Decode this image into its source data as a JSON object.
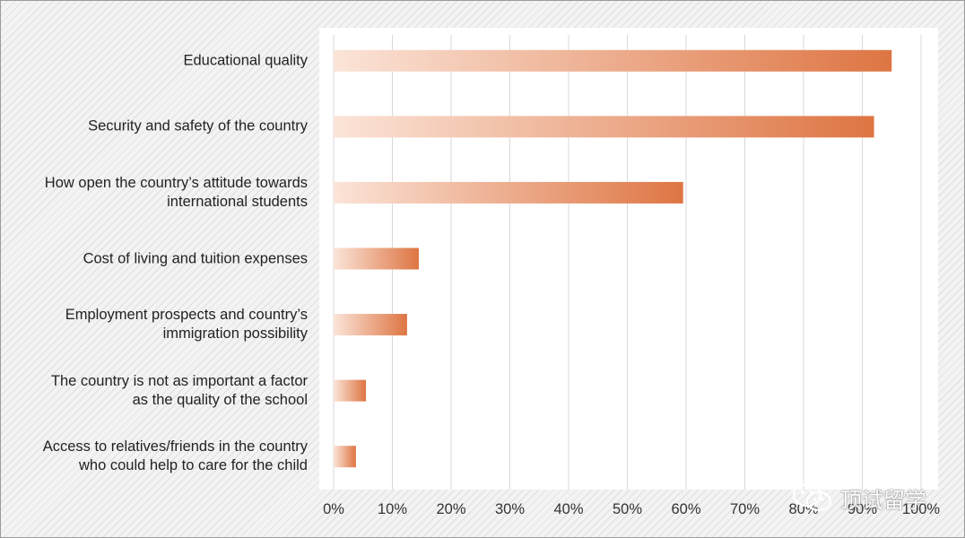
{
  "chart_data": {
    "type": "bar",
    "orientation": "horizontal",
    "categories": [
      "Educational quality",
      "Security and safety of the country",
      "How open the country’s attitude towards\ninternational students",
      "Cost of living and tuition expenses",
      "Employment prospects and country’s\nimmigration possibility",
      "The country is not as important a factor\nas the quality of the school",
      "Access to relatives/friends in the country\nwho could help to care for the child"
    ],
    "values": [
      95,
      92,
      59.5,
      14.5,
      12.5,
      5.5,
      3.8
    ],
    "x_ticks": [
      "0%",
      "10%",
      "20%",
      "30%",
      "40%",
      "50%",
      "60%",
      "70%",
      "80%",
      "90%",
      "100%"
    ],
    "xlim": [
      0,
      100
    ],
    "grid": "vertical",
    "bar_gradient": [
      "#fbe4d8",
      "#de7543"
    ],
    "title": "",
    "xlabel": "",
    "ylabel": ""
  },
  "watermark": {
    "icon": "wechat-icon",
    "text": "顶试留学"
  }
}
